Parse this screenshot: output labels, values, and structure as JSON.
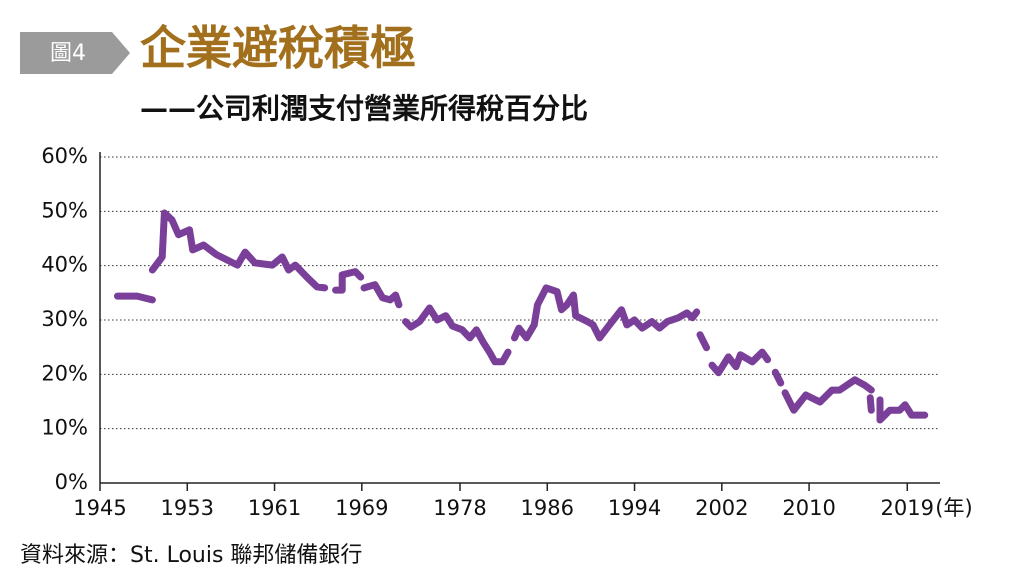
{
  "chart_data": {
    "type": "line",
    "badge": "圖4",
    "title": "企業避稅積極",
    "subtitle": "——公司利潤支付營業所得稅百分比",
    "x_label": "(年)",
    "source": "資料來源：St. Louis 聯邦儲備銀行",
    "color": "#7a3f98",
    "grid": true,
    "xlim": [
      1945,
      2022
    ],
    "xticks": [
      1945,
      1953,
      1961,
      1969,
      1978,
      1986,
      1994,
      2002,
      2010,
      2019
    ],
    "ylim": [
      0,
      60
    ],
    "yticks": [
      {
        "value": 0,
        "label": "0%"
      },
      {
        "value": 10,
        "label": "10%"
      },
      {
        "value": 20,
        "label": "20%"
      },
      {
        "value": 30,
        "label": "30%"
      },
      {
        "value": 40,
        "label": "40%"
      },
      {
        "value": 50,
        "label": "50%"
      },
      {
        "value": 60,
        "label": "60%"
      }
    ],
    "x": [
      1946.6,
      1948.4,
      1949.8,
      null,
      1949.8,
      1950.7,
      1950.9,
      1951.6,
      1952.2,
      1953.2,
      1953.5,
      1954.5,
      1955.7,
      1957.6,
      1958.3,
      1959.2,
      1960.8,
      1961.7,
      1962.3,
      1962.9,
      1964.0,
      1964.9,
      1965.6,
      null,
      1966.6,
      1967.2,
      1967.2,
      1968.4,
      1968.9,
      null,
      1969.2,
      1970.2,
      1970.9,
      1971.6,
      1972.1,
      1972.4,
      null,
      1973.0,
      1973.5,
      1974.3,
      1975.2,
      1975.9,
      1976.7,
      1977.3,
      1978.2,
      1978.9,
      1979.5,
      1980.1,
      1980.7,
      1981.2,
      1981.9,
      1982.4,
      null,
      1983.0,
      1983.4,
      1984.1,
      1984.8,
      1985.1,
      1985.9,
      1986.9,
      1987.3,
      1987.8,
      1988.4,
      1988.6,
      1989.7,
      1990.2,
      1990.8,
      1991.7,
      1992.8,
      1993.3,
      1994.0,
      1994.7,
      1995.6,
      1996.3,
      1997.0,
      1998.0,
      1998.8,
      1999.3,
      1999.7,
      null,
      2000.0,
      2000.6,
      null,
      2001.1,
      2001.7,
      2002.6,
      2003.3,
      2003.7,
      2004.8,
      2005.7,
      2006.2,
      null,
      2006.9,
      2007.4,
      null,
      2007.8,
      2008.6,
      2009.7,
      2011.0,
      2012.1,
      2012.8,
      2014.2,
      2015.1,
      2015.7,
      null,
      2015.6,
      2015.7,
      null,
      2016.5,
      2016.5,
      2017.4,
      2018.3,
      2018.8,
      2019.4,
      2020.6
    ],
    "values": [
      34.4,
      34.4,
      33.7,
      null,
      39.2,
      41.6,
      49.7,
      48.4,
      45.7,
      46.6,
      42.9,
      43.8,
      42.0,
      40.1,
      42.5,
      40.5,
      40.1,
      41.6,
      39.2,
      40.1,
      37.8,
      36.1,
      35.9,
      null,
      35.5,
      35.5,
      38.3,
      38.9,
      37.9,
      null,
      35.9,
      36.5,
      34.1,
      33.7,
      34.6,
      32.8,
      null,
      29.7,
      28.7,
      29.7,
      32.2,
      30.0,
      30.8,
      28.9,
      28.2,
      26.7,
      28.2,
      26.0,
      24.1,
      22.3,
      22.3,
      24.1,
      null,
      26.7,
      28.5,
      26.7,
      29.1,
      32.8,
      35.9,
      35.2,
      31.9,
      32.8,
      34.6,
      30.8,
      29.7,
      29.1,
      26.7,
      29.1,
      31.9,
      29.1,
      30.0,
      28.5,
      29.7,
      28.5,
      29.7,
      30.4,
      31.3,
      30.4,
      31.5,
      null,
      27.3,
      24.9,
      null,
      21.7,
      20.3,
      23.2,
      21.4,
      23.6,
      22.3,
      24.1,
      22.7,
      null,
      20.4,
      18.4,
      null,
      16.6,
      13.4,
      16.2,
      14.9,
      17.1,
      17.1,
      19.0,
      18.0,
      17.1,
      null,
      15.7,
      13.4,
      null,
      15.3,
      11.6,
      13.4,
      13.4,
      14.4,
      12.5,
      12.5
    ]
  }
}
